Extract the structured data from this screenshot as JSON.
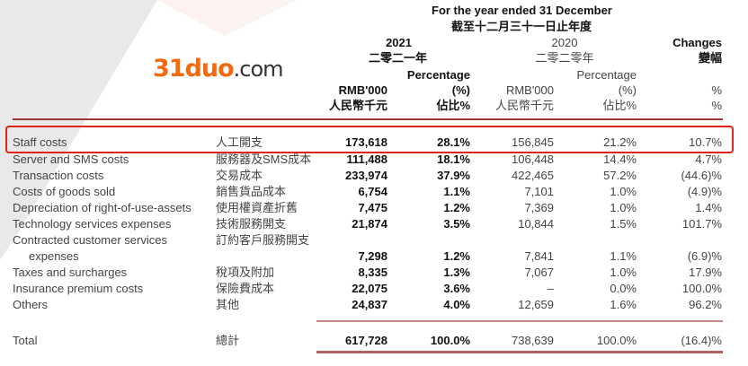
{
  "header": {
    "period_en": "For the year ended 31 December",
    "period_zh": "截至十二月三十一日止年度",
    "year_2021": "2021",
    "year_2021_zh": "二零二一年",
    "year_2020": "2020",
    "year_2020_zh": "二零二零年",
    "changes": "Changes",
    "changes_zh": "變幅",
    "percentage": "Percentage",
    "pct_unit": "(%)",
    "pct_unit_zh": "佔比%",
    "rmb": "RMB'000",
    "rmb_zh": "人民幣千元",
    "pct": "%"
  },
  "rows": [
    {
      "en": "Staff costs",
      "zh": "人工開支",
      "v2021": "173,618",
      "p2021": "28.1%",
      "v2020": "156,845",
      "p2020": "21.2%",
      "chg": "10.7%"
    },
    {
      "en": "Server and SMS costs",
      "zh": "服務器及SMS成本",
      "v2021": "111,488",
      "p2021": "18.1%",
      "v2020": "106,448",
      "p2020": "14.4%",
      "chg": "4.7%"
    },
    {
      "en": "Transaction costs",
      "zh": "交易成本",
      "v2021": "233,974",
      "p2021": "37.9%",
      "v2020": "422,465",
      "p2020": "57.2%",
      "chg": "(44.6)%"
    },
    {
      "en": "Costs of goods sold",
      "zh": "銷售貨品成本",
      "v2021": "6,754",
      "p2021": "1.1%",
      "v2020": "7,101",
      "p2020": "1.0%",
      "chg": "(4.9)%"
    },
    {
      "en": "Depreciation of right-of-use-assets",
      "zh": "使用權資產折舊",
      "v2021": "7,475",
      "p2021": "1.2%",
      "v2020": "7,369",
      "p2020": "1.0%",
      "chg": "1.4%"
    },
    {
      "en": "Technology services expenses",
      "zh": "技術服務開支",
      "v2021": "21,874",
      "p2021": "3.5%",
      "v2020": "10,844",
      "p2020": "1.5%",
      "chg": "101.7%"
    },
    {
      "en": "Contracted customer services",
      "en2": "expenses",
      "zh": "訂約客戶服務開支",
      "v2021": "7,298",
      "p2021": "1.2%",
      "v2020": "7,841",
      "p2020": "1.1%",
      "chg": "(6.9)%"
    },
    {
      "en": "Taxes and surcharges",
      "zh": "稅項及附加",
      "v2021": "8,335",
      "p2021": "1.3%",
      "v2020": "7,067",
      "p2020": "1.0%",
      "chg": "17.9%"
    },
    {
      "en": "Insurance premium costs",
      "zh": "保險費成本",
      "v2021": "22,075",
      "p2021": "3.6%",
      "v2020": "–",
      "p2020": "0.0%",
      "chg": "100.0%"
    },
    {
      "en": "Others",
      "zh": "其他",
      "v2021": "24,837",
      "p2021": "4.0%",
      "v2020": "12,659",
      "p2020": "1.6%",
      "chg": "96.2%"
    }
  ],
  "total": {
    "en": "Total",
    "zh": "總計",
    "v2021": "617,728",
    "p2021": "100.0%",
    "v2020": "738,639",
    "p2020": "100.0%",
    "chg": "(16.4)%"
  },
  "watermark": {
    "a": "31duo",
    "b": ".com"
  },
  "colors": {
    "highlight": "#e2231a",
    "rule": "#b5625c"
  }
}
